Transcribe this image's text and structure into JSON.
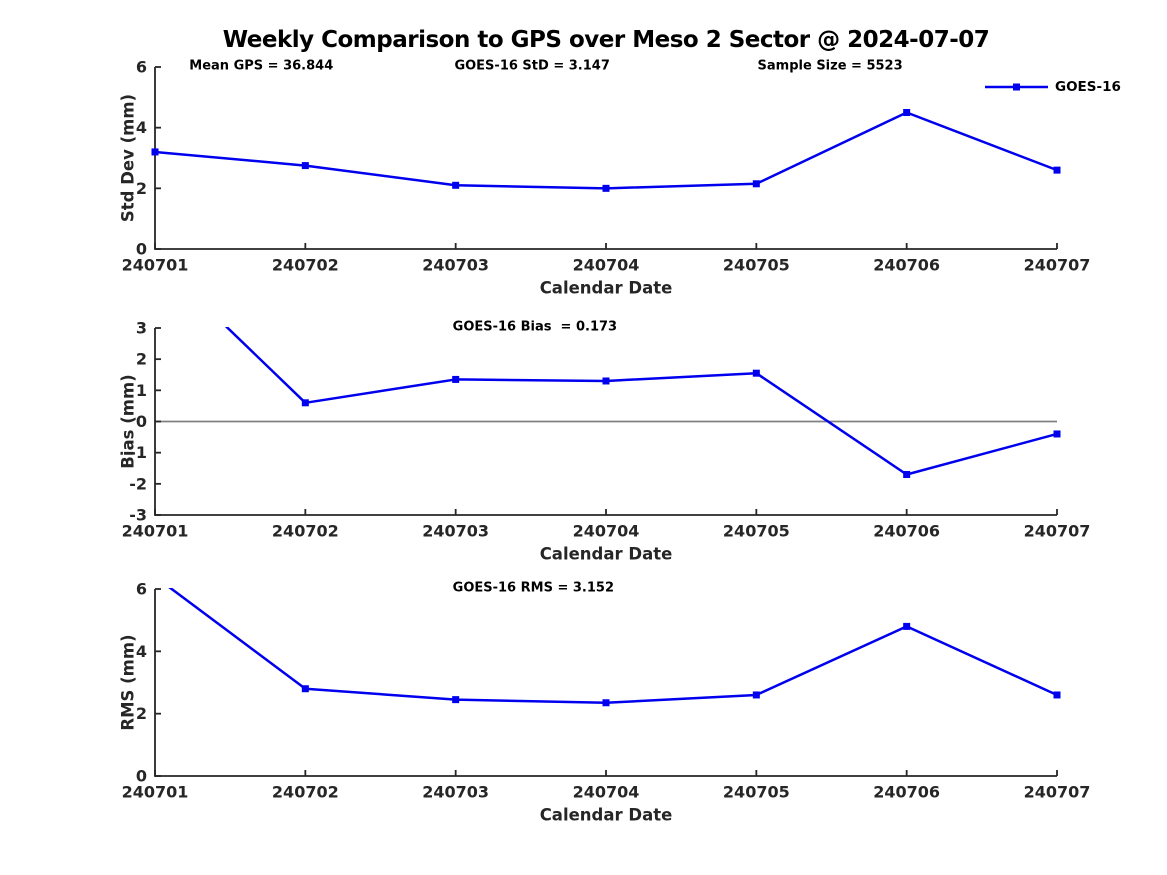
{
  "title": "Weekly Comparison to GPS over Meso 2 Sector @ 2024-07-07",
  "colors": {
    "series": "#0000EE",
    "zero_line": "#808080",
    "axis": "#262626",
    "text": "#000000"
  },
  "legend": {
    "label": "GOES-16"
  },
  "chart_data": [
    {
      "type": "line",
      "id": "std-dev",
      "categories": [
        "240701",
        "240702",
        "240703",
        "240704",
        "240705",
        "240706",
        "240707"
      ],
      "series": [
        {
          "name": "GOES-16",
          "values": [
            3.2,
            2.75,
            2.1,
            2.0,
            2.15,
            4.5,
            2.6
          ]
        }
      ],
      "annotations": [
        {
          "text": "Mean GPS = 36.844",
          "xfrac": 0.038
        },
        {
          "text": "GOES-16 StD = 3.147",
          "xfrac": 0.332
        },
        {
          "text": "Sample Size = 5523",
          "xfrac": 0.668
        }
      ],
      "xlabel": "Calendar Date",
      "ylabel": "Std Dev (mm)",
      "ylim": [
        0,
        6
      ],
      "yticks": [
        0,
        2,
        4,
        6
      ],
      "grid": false,
      "zero_line": false,
      "show_legend": true,
      "legend_position": "top-right"
    },
    {
      "type": "line",
      "id": "bias",
      "categories": [
        "240701",
        "240702",
        "240703",
        "240704",
        "240705",
        "240706",
        "240707"
      ],
      "series": [
        {
          "name": "GOES-16",
          "values": [
            5.25,
            0.6,
            1.35,
            1.3,
            1.55,
            -1.7,
            -0.4
          ]
        }
      ],
      "annotations": [
        {
          "text": "GOES-16 Bias  = 0.173",
          "xfrac": 0.33
        }
      ],
      "xlabel": "Calendar Date",
      "ylabel": "Bias (mm)",
      "ylim": [
        -3,
        3
      ],
      "yticks": [
        -3,
        -2,
        -1,
        0,
        1,
        2,
        3
      ],
      "grid": false,
      "zero_line": true,
      "show_legend": false
    },
    {
      "type": "line",
      "id": "rms",
      "categories": [
        "240701",
        "240702",
        "240703",
        "240704",
        "240705",
        "240706",
        "240707"
      ],
      "series": [
        {
          "name": "GOES-16",
          "values": [
            6.4,
            2.8,
            2.45,
            2.35,
            2.6,
            4.8,
            2.6
          ]
        }
      ],
      "annotations": [
        {
          "text": "GOES-16 RMS = 3.152",
          "xfrac": 0.33
        }
      ],
      "xlabel": "Calendar Date",
      "ylabel": "RMS (mm)",
      "ylim": [
        0,
        6
      ],
      "yticks": [
        0,
        2,
        4,
        6
      ],
      "grid": false,
      "zero_line": false,
      "show_legend": false
    }
  ]
}
